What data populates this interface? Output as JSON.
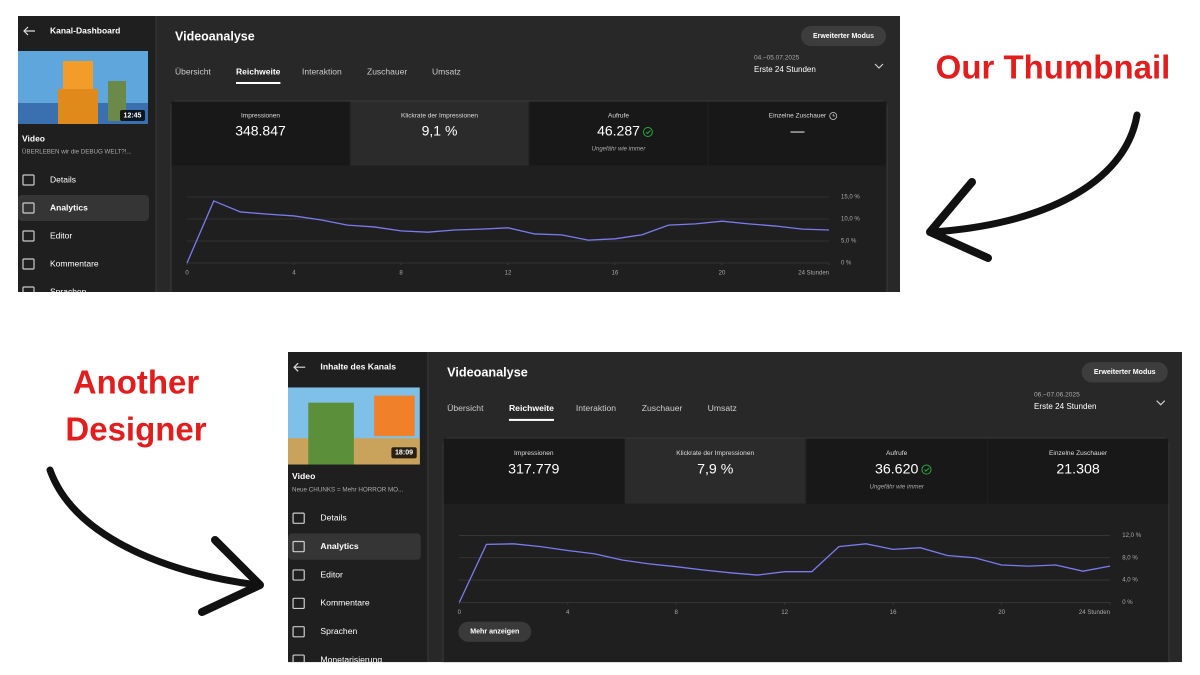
{
  "annotations": [
    {
      "lines": [
        "Our Thumbnail"
      ]
    },
    {
      "lines": [
        "Another",
        "Designer"
      ]
    }
  ],
  "panels": [
    {
      "sidebar": {
        "title": "Kanal-Dashboard",
        "duration": "12:45",
        "video_label": "Video",
        "video_title": "ÜBERLEBEN wir die DEBUG WELT?!...",
        "nav": [
          "Details",
          "Analytics",
          "Editor",
          "Kommentare",
          "Sprachen"
        ],
        "active": 1
      },
      "header": {
        "title": "Videoanalyse",
        "button": "Erweiterter Modus",
        "tabs": [
          "Übersicht",
          "Reichweite",
          "Interaktion",
          "Zuschauer",
          "Umsatz"
        ],
        "active_tab": 1,
        "date_range": "04.–05.07.2025",
        "period": "Erste 24 Stunden"
      },
      "metrics": [
        {
          "label": "Impressionen",
          "value": "348.847"
        },
        {
          "label": "Klickrate der Impressionen",
          "value": "9,1 %"
        },
        {
          "label": "Aufrufe",
          "value": "46.287",
          "note": "Ungefähr wie immer",
          "icon": "check"
        },
        {
          "label": "Einzelne Zuschauer",
          "value": "—",
          "label_icon": "clock"
        }
      ],
      "selected_metric": 1
    },
    {
      "sidebar": {
        "title": "Inhalte des Kanals",
        "duration": "18:09",
        "video_label": "Video",
        "video_title": "Neue CHUNKS = Mehr HORROR MO...",
        "nav": [
          "Details",
          "Analytics",
          "Editor",
          "Kommentare",
          "Sprachen",
          "Monetarisierung"
        ],
        "active": 1
      },
      "header": {
        "title": "Videoanalyse",
        "button": "Erweiterter Modus",
        "tabs": [
          "Übersicht",
          "Reichweite",
          "Interaktion",
          "Zuschauer",
          "Umsatz"
        ],
        "active_tab": 1,
        "date_range": "06.–07.06.2025",
        "period": "Erste 24 Stunden"
      },
      "metrics": [
        {
          "label": "Impressionen",
          "value": "317.779"
        },
        {
          "label": "Klickrate der Impressionen",
          "value": "7,9 %"
        },
        {
          "label": "Aufrufe",
          "value": "36.620",
          "note": "Ungefähr wie immer",
          "icon": "check"
        },
        {
          "label": "Einzelne Zuschauer",
          "value": "21.308"
        }
      ],
      "selected_metric": 1,
      "more_button": "Mehr anzeigen"
    }
  ],
  "chart_data": [
    {
      "type": "line",
      "x": [
        0,
        1,
        2,
        3,
        4,
        5,
        6,
        7,
        8,
        9,
        10,
        11,
        12,
        13,
        14,
        15,
        16,
        17,
        18,
        19,
        20,
        21,
        22,
        23,
        24
      ],
      "series": [
        {
          "color": "#7b7bf0",
          "values": [
            0,
            14.1,
            11.6,
            11.1,
            10.7,
            9.8,
            8.6,
            8.2,
            7.3,
            7.0,
            7.5,
            7.7,
            8.0,
            6.6,
            6.4,
            5.2,
            5.5,
            6.4,
            8.6,
            8.9,
            9.5,
            8.9,
            8.4,
            7.7,
            7.5
          ]
        }
      ],
      "xlim": [
        0,
        24
      ],
      "xticks": [
        0,
        4,
        8,
        12,
        16,
        20,
        {
          "value": 24,
          "label": "24 Stunden"
        }
      ],
      "ylim": [
        0,
        15
      ],
      "yticks": [
        {
          "value": 0,
          "label": "0 %"
        },
        {
          "value": 5,
          "label": "5,0 %"
        },
        {
          "value": 10,
          "label": "10,0 %"
        },
        {
          "value": 15,
          "label": "15,0 %"
        }
      ],
      "grid": true
    },
    {
      "type": "line",
      "x": [
        0,
        1,
        2,
        3,
        4,
        5,
        6,
        7,
        8,
        9,
        10,
        11,
        12,
        13,
        14,
        15,
        16,
        17,
        18,
        19,
        20,
        21,
        22,
        23,
        24
      ],
      "series": [
        {
          "color": "#7b7bf0",
          "values": [
            0,
            10.4,
            10.5,
            10.0,
            9.3,
            8.7,
            7.6,
            6.9,
            6.4,
            5.8,
            5.3,
            4.9,
            5.5,
            5.5,
            10.0,
            10.5,
            9.5,
            9.8,
            8.4,
            8.0,
            6.7,
            6.5,
            6.7,
            5.6,
            6.5
          ]
        }
      ],
      "xlim": [
        0,
        24
      ],
      "xticks": [
        0,
        4,
        8,
        12,
        16,
        20,
        {
          "value": 24,
          "label": "24 Stunden"
        }
      ],
      "ylim": [
        0,
        12
      ],
      "yticks": [
        {
          "value": 0,
          "label": "0 %"
        },
        {
          "value": 4,
          "label": "4,0 %"
        },
        {
          "value": 8,
          "label": "8,0 %"
        },
        {
          "value": 12,
          "label": "12,0 %"
        }
      ],
      "grid": true
    }
  ]
}
